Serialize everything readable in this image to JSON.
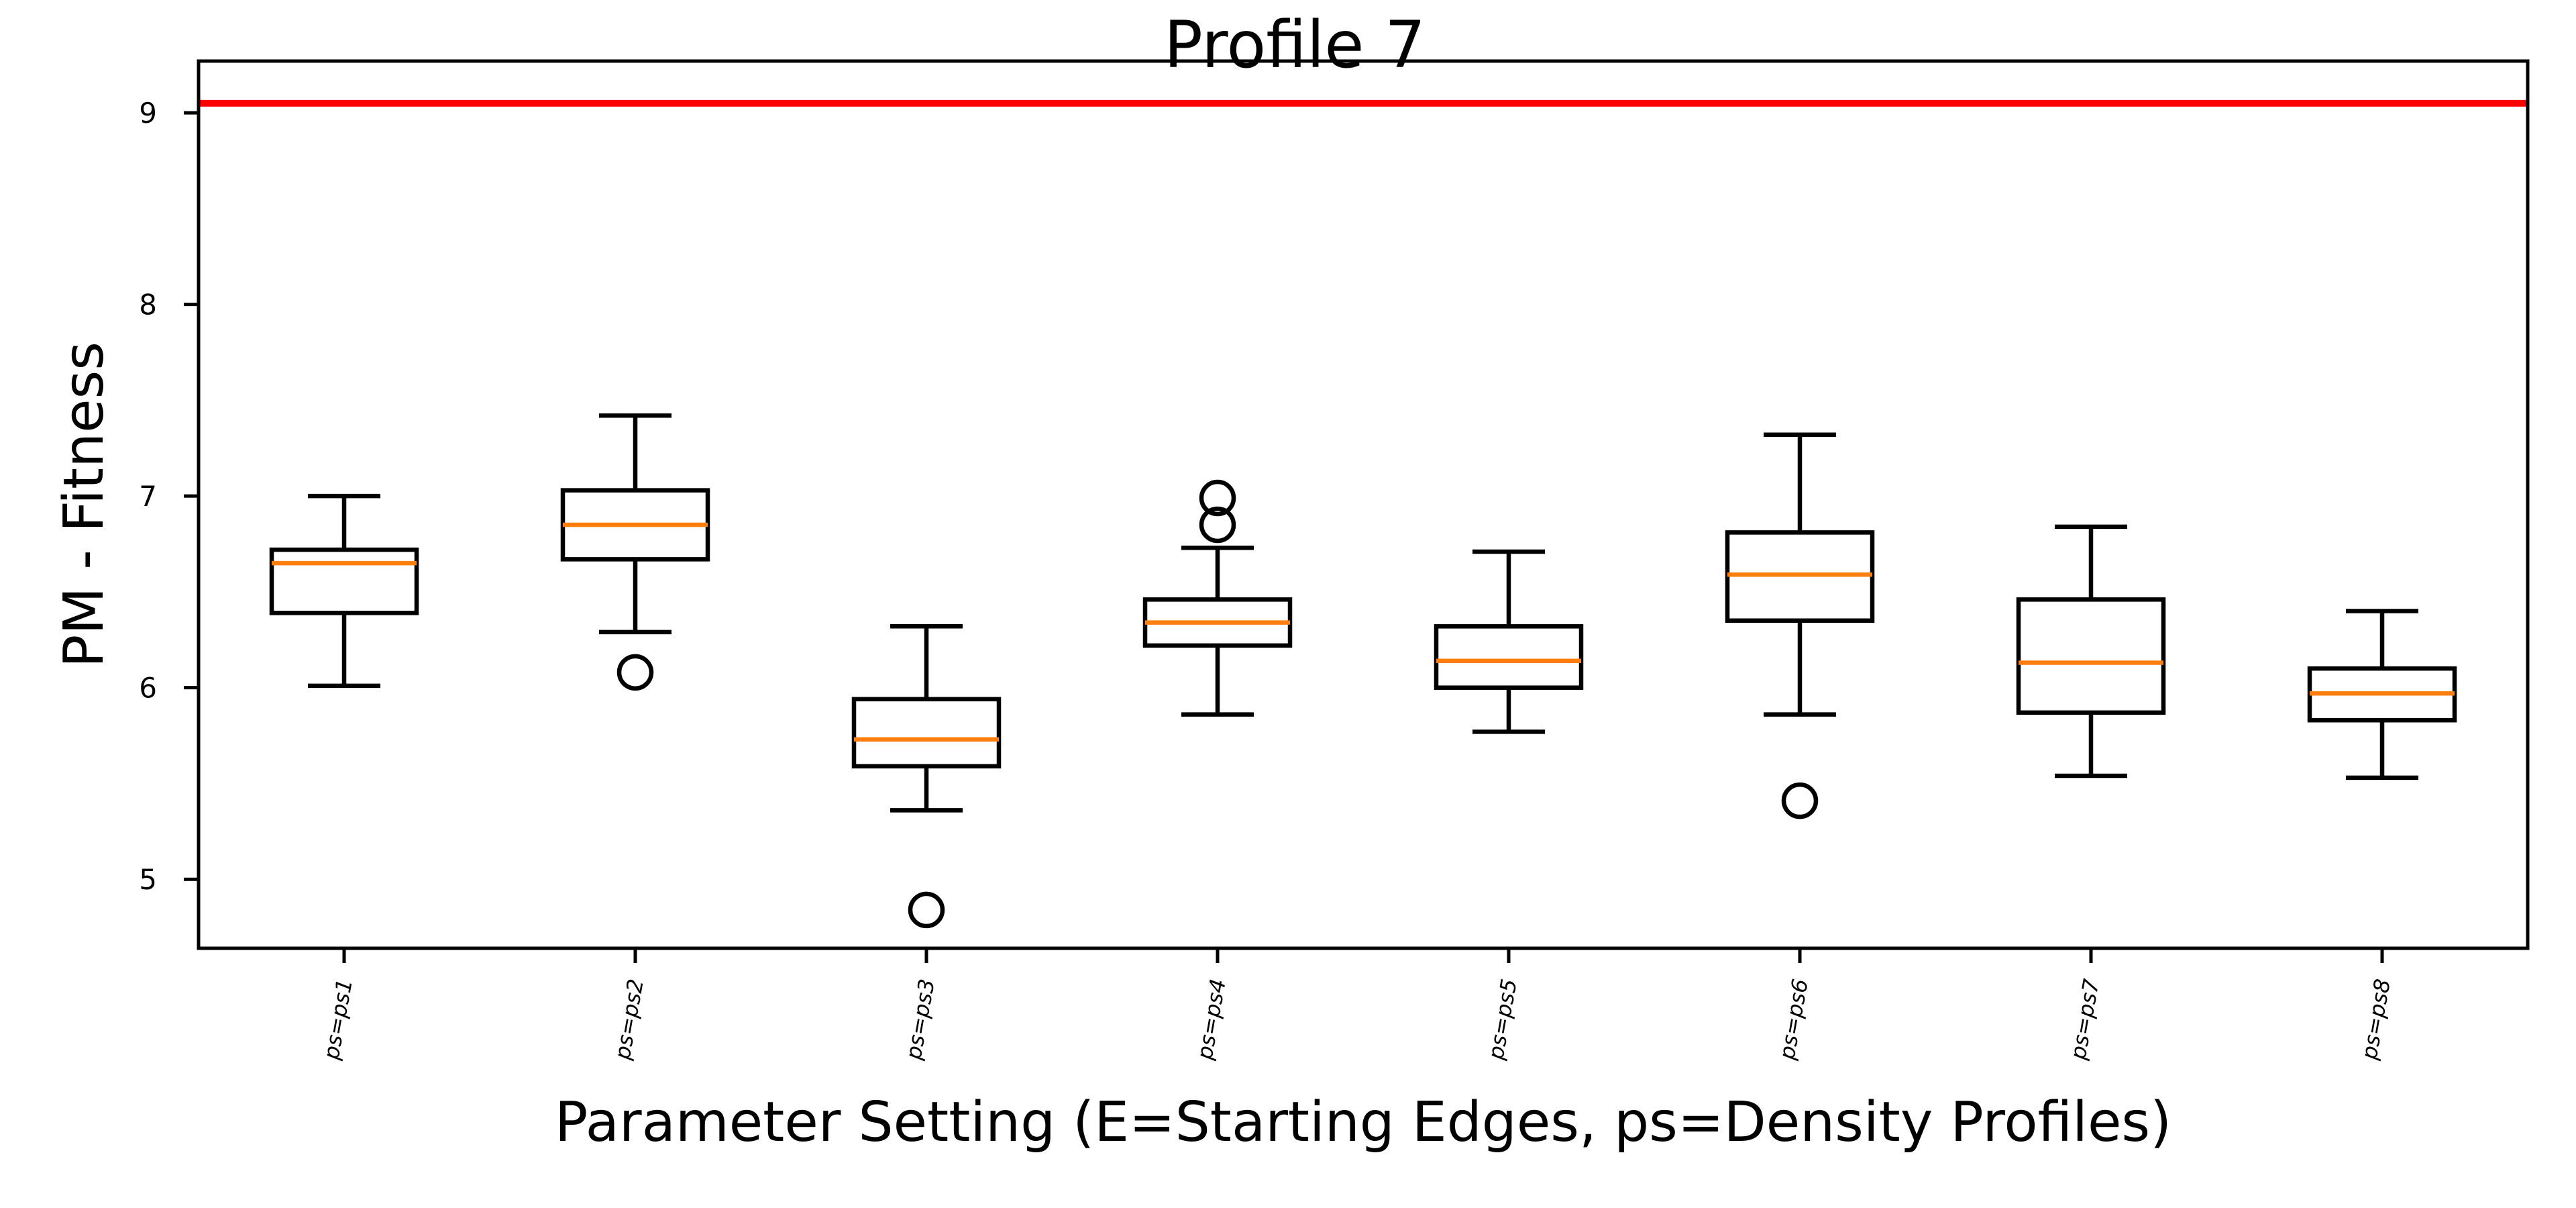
{
  "chart_data": {
    "type": "box",
    "title": "Profile 7",
    "xlabel": "Parameter Setting (E=Starting Edges, ps=Density Profiles)",
    "ylabel": "PM - Fitness",
    "ylim": [
      4.64,
      9.27
    ],
    "yticks": [
      5,
      6,
      7,
      8,
      9
    ],
    "grid": false,
    "reference_line": {
      "y": 9.05,
      "color": "#ff0000"
    },
    "categories": [
      "ps=ps1",
      "ps=ps2",
      "ps=ps3",
      "ps=ps4",
      "ps=ps5",
      "ps=ps6",
      "ps=ps7",
      "ps=ps8"
    ],
    "boxes": [
      {
        "label": "ps=ps1",
        "whisker_low": 6.01,
        "q1": 6.39,
        "median": 6.65,
        "q3": 6.72,
        "whisker_high": 7.0,
        "outliers": []
      },
      {
        "label": "ps=ps2",
        "whisker_low": 6.29,
        "q1": 6.67,
        "median": 6.85,
        "q3": 7.03,
        "whisker_high": 7.42,
        "outliers": [
          6.08
        ]
      },
      {
        "label": "ps=ps3",
        "whisker_low": 5.36,
        "q1": 5.59,
        "median": 5.73,
        "q3": 5.94,
        "whisker_high": 6.32,
        "outliers": [
          4.84
        ]
      },
      {
        "label": "ps=ps4",
        "whisker_low": 5.86,
        "q1": 6.22,
        "median": 6.34,
        "q3": 6.46,
        "whisker_high": 6.73,
        "outliers": [
          6.85,
          6.99
        ]
      },
      {
        "label": "ps=ps5",
        "whisker_low": 5.77,
        "q1": 6.0,
        "median": 6.14,
        "q3": 6.32,
        "whisker_high": 6.71,
        "outliers": []
      },
      {
        "label": "ps=ps6",
        "whisker_low": 5.86,
        "q1": 6.35,
        "median": 6.59,
        "q3": 6.81,
        "whisker_high": 7.32,
        "outliers": [
          5.41
        ]
      },
      {
        "label": "ps=ps7",
        "whisker_low": 5.54,
        "q1": 5.87,
        "median": 6.13,
        "q3": 6.46,
        "whisker_high": 6.84,
        "outliers": []
      },
      {
        "label": "ps=ps8",
        "whisker_low": 5.53,
        "q1": 5.83,
        "median": 5.97,
        "q3": 6.1,
        "whisker_high": 6.4,
        "outliers": []
      }
    ],
    "colors": {
      "box": "#000000",
      "median": "#ff7f0e",
      "reference": "#ff0000"
    }
  }
}
